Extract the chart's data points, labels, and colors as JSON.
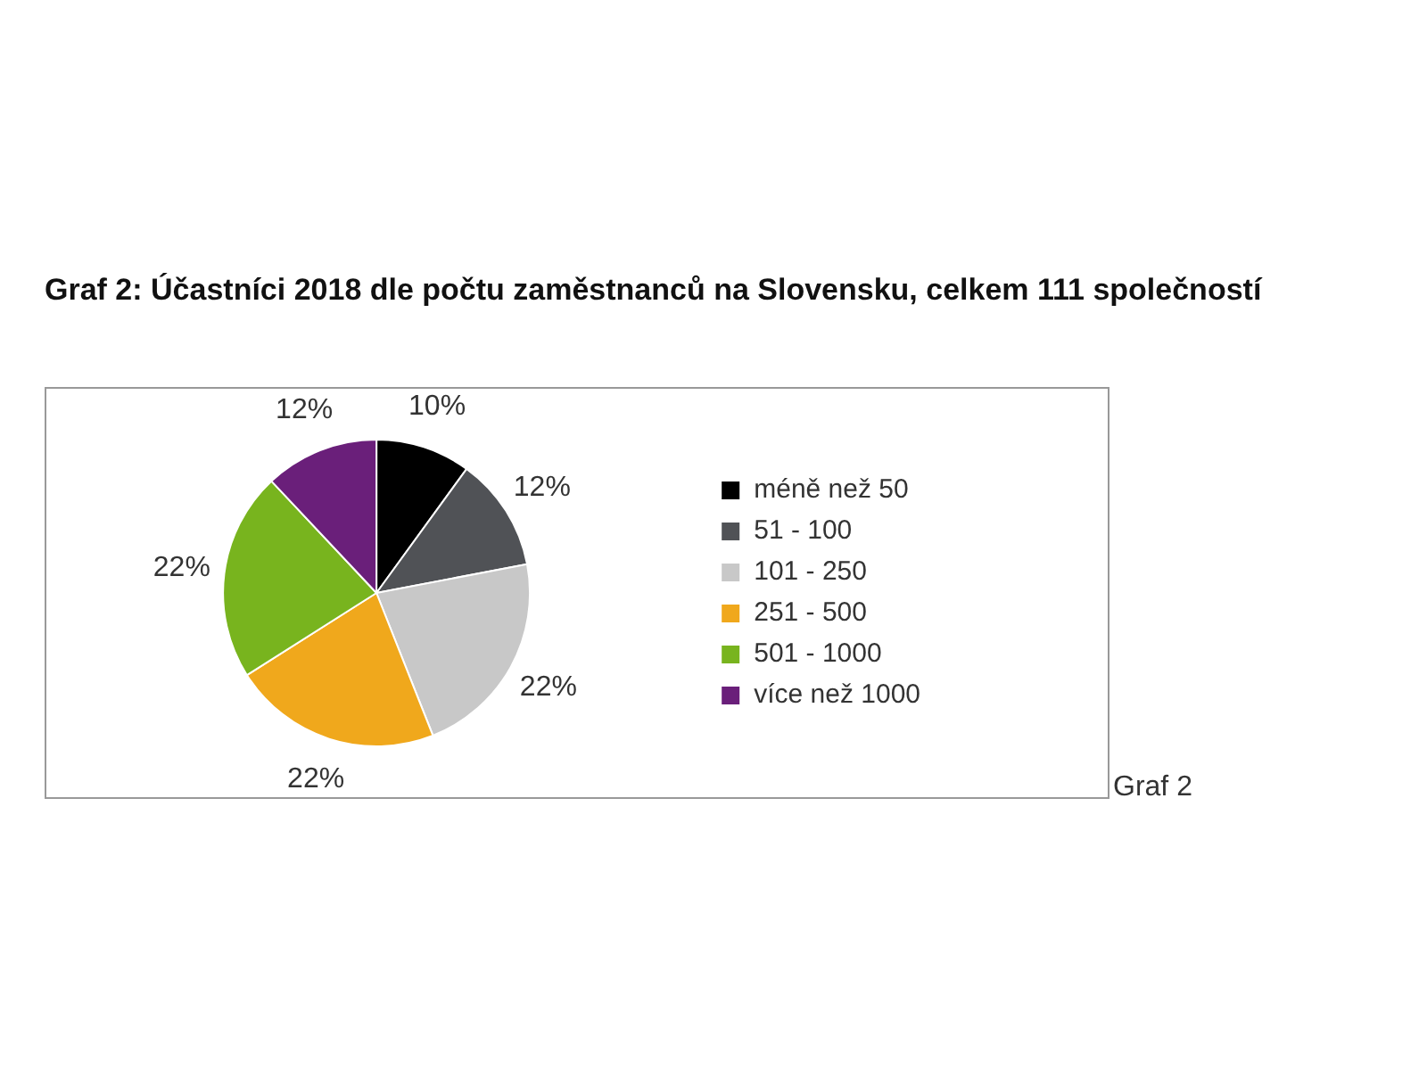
{
  "chart_data": {
    "type": "pie",
    "title": "Graf 2: Účastníci 2018 dle počtu zaměstnanců na Slovensku, celkem 111 společností",
    "categories": [
      "méně než 50",
      "51 - 100",
      "101 - 250",
      "251 - 500",
      "501 - 1000",
      "více než 1000"
    ],
    "values": [
      10,
      12,
      22,
      22,
      22,
      12
    ],
    "colors": [
      "#000000",
      "#505256",
      "#c8c8c8",
      "#f0a81c",
      "#78b41e",
      "#6a1f7a"
    ],
    "value_labels": [
      "10%",
      "12%",
      "22%",
      "22%",
      "22%",
      "12%"
    ],
    "legend": "right",
    "annotations": [
      "Graf 2"
    ]
  }
}
